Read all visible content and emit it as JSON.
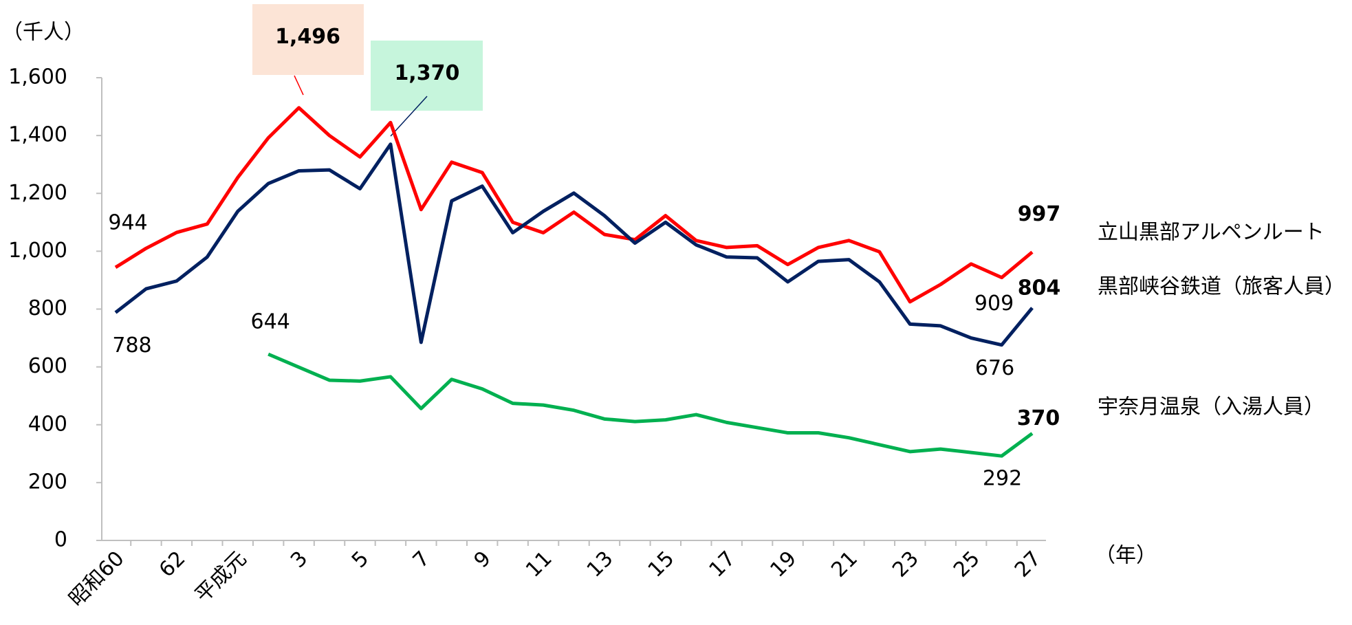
{
  "chart_data": {
    "type": "line",
    "y_unit_label": "（千人）",
    "x_unit_label": "（年）",
    "categories": [
      "昭和60",
      null,
      "62",
      null,
      "平成元",
      null,
      "3",
      null,
      "5",
      null,
      "7",
      null,
      "9",
      null,
      "11",
      null,
      "13",
      null,
      "15",
      null,
      "17",
      null,
      "19",
      null,
      "21",
      null,
      "23",
      null,
      "25",
      null,
      "27"
    ],
    "ylim": [
      0,
      1600
    ],
    "yticks": [
      0,
      200,
      400,
      600,
      800,
      {
        "value": 1000,
        "label": "1,000"
      },
      {
        "value": 1200,
        "label": "1,200"
      },
      {
        "value": 1400,
        "label": "1,400"
      },
      {
        "value": 1600,
        "label": "1,600"
      }
    ],
    "grid": false,
    "series": [
      {
        "name": "立山黒部アルペンルート",
        "color": "#ff0000",
        "values": [
          944,
          1010,
          1065,
          1094,
          1255,
          1392,
          1496,
          1400,
          1326,
          1445,
          1144,
          1308,
          1272,
          1100,
          1064,
          1135,
          1058,
          1040,
          1123,
          1037,
          1013,
          1019,
          954,
          1013,
          1037,
          998,
          825,
          885,
          956,
          909,
          997
        ],
        "value_labels": [
          "944",
          null,
          null,
          null,
          null,
          null,
          "1,496",
          null,
          null,
          null,
          null,
          null,
          null,
          null,
          null,
          null,
          null,
          null,
          null,
          null,
          null,
          null,
          null,
          null,
          null,
          null,
          null,
          null,
          null,
          "909",
          "997"
        ]
      },
      {
        "name": "黒部峡谷鉄道（旅客人員）",
        "color": "#002060",
        "values": [
          788,
          870,
          897,
          980,
          1138,
          1234,
          1278,
          1281,
          1216,
          1370,
          685,
          1174,
          1225,
          1064,
          1138,
          1201,
          1123,
          1028,
          1100,
          1022,
          980,
          977,
          894,
          965,
          971,
          894,
          748,
          742,
          700,
          676,
          804
        ],
        "value_labels": [
          "788",
          null,
          null,
          null,
          null,
          null,
          null,
          null,
          null,
          "1,370",
          null,
          null,
          null,
          null,
          null,
          null,
          null,
          null,
          null,
          null,
          null,
          null,
          null,
          null,
          null,
          null,
          null,
          null,
          null,
          "676",
          "804"
        ]
      },
      {
        "name": "宇奈月温泉（入湯人員）",
        "color": "#00b050",
        "values": [
          null,
          null,
          null,
          null,
          null,
          644,
          599,
          554,
          551,
          566,
          456,
          557,
          524,
          474,
          468,
          450,
          420,
          411,
          417,
          435,
          408,
          390,
          372,
          372,
          355,
          331,
          307,
          316,
          304,
          292,
          370
        ],
        "value_labels": [
          null,
          null,
          null,
          null,
          null,
          "644",
          null,
          null,
          null,
          null,
          null,
          null,
          null,
          null,
          null,
          null,
          null,
          null,
          null,
          null,
          null,
          null,
          null,
          null,
          null,
          null,
          null,
          null,
          null,
          "292",
          "370"
        ]
      }
    ]
  }
}
